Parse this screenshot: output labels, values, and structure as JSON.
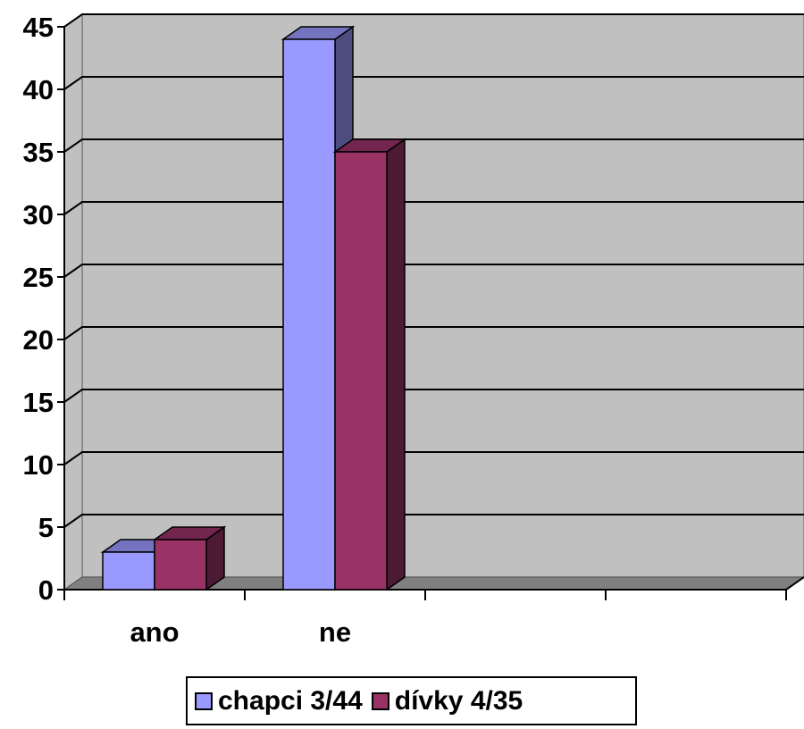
{
  "chart_data": {
    "type": "bar",
    "style": "3d-clustered-column",
    "categories": [
      "ano",
      "ne",
      "",
      ""
    ],
    "series": [
      {
        "name": "chapci 3/44",
        "values": [
          3,
          44,
          null,
          null
        ],
        "color": "#9999ff"
      },
      {
        "name": "dívky 4/35",
        "values": [
          4,
          35,
          null,
          null
        ],
        "color": "#993366"
      }
    ],
    "ylim": [
      0,
      45
    ],
    "yticks": [
      0,
      5,
      10,
      15,
      20,
      25,
      30,
      35,
      40,
      45
    ],
    "grid": true,
    "wall_color": "#c0c0c0",
    "legend_position": "bottom"
  }
}
